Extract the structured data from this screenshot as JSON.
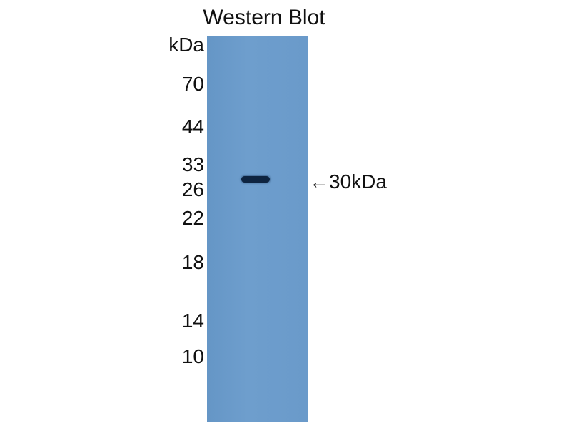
{
  "title": "Western Blot",
  "unit_label": "kDa",
  "markers": [
    "70",
    "44",
    "33",
    "26",
    "22",
    "18",
    "14",
    "10"
  ],
  "band_annotation": "←30kDa",
  "colors": {
    "membrane": "#6a9aca",
    "band": "#0e2440"
  }
}
